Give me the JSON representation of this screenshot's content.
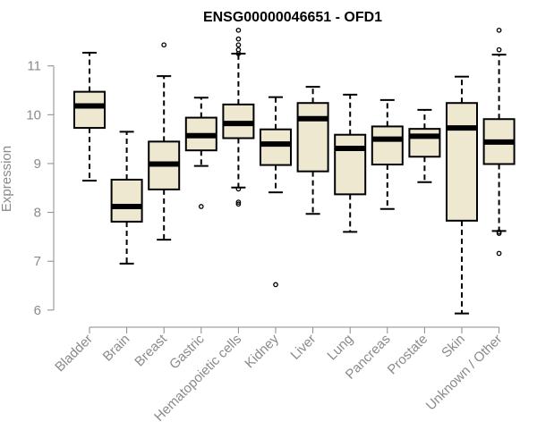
{
  "chart_data": {
    "type": "box",
    "title": "ENSG00000046651 - OFD1",
    "ylabel": "Expression",
    "xlabel": "",
    "ylim": [
      5.85,
      11.8
    ],
    "yticks": [
      6,
      7,
      8,
      9,
      10,
      11
    ],
    "categories": [
      "Bladder",
      "Brain",
      "Breast",
      "Gastric",
      "Hematopoietic cells",
      "Kidney",
      "Liver",
      "Lung",
      "Pancreas",
      "Prostate",
      "Skin",
      "Unknown / Other"
    ],
    "box_fill": "#efe8d0",
    "axis_color": "#8a8a8a",
    "boxes": [
      {
        "q1": 9.73,
        "median": 10.18,
        "q3": 10.47,
        "whislo": 8.65,
        "whishi": 11.27,
        "outliers": []
      },
      {
        "q1": 7.81,
        "median": 8.12,
        "q3": 8.67,
        "whislo": 6.95,
        "whishi": 9.65,
        "outliers": []
      },
      {
        "q1": 8.47,
        "median": 8.99,
        "q3": 9.45,
        "whislo": 7.44,
        "whishi": 10.79,
        "outliers": [
          11.43
        ]
      },
      {
        "q1": 9.27,
        "median": 9.57,
        "q3": 9.94,
        "whislo": 8.95,
        "whishi": 10.35,
        "outliers": [
          8.12
        ]
      },
      {
        "q1": 9.52,
        "median": 9.82,
        "q3": 10.21,
        "whislo": 8.51,
        "whishi": 11.25,
        "outliers": [
          11.73,
          11.55,
          11.43,
          11.33,
          11.25,
          8.48,
          8.21,
          8.17
        ]
      },
      {
        "q1": 8.97,
        "median": 9.4,
        "q3": 9.7,
        "whislo": 8.41,
        "whishi": 10.36,
        "outliers": [
          6.52
        ]
      },
      {
        "q1": 8.84,
        "median": 9.92,
        "q3": 10.24,
        "whislo": 7.97,
        "whishi": 10.57,
        "outliers": []
      },
      {
        "q1": 8.37,
        "median": 9.31,
        "q3": 9.59,
        "whislo": 7.6,
        "whishi": 10.41,
        "outliers": []
      },
      {
        "q1": 8.98,
        "median": 9.5,
        "q3": 9.76,
        "whislo": 8.07,
        "whishi": 10.3,
        "outliers": []
      },
      {
        "q1": 9.14,
        "median": 9.56,
        "q3": 9.71,
        "whislo": 8.62,
        "whishi": 10.1,
        "outliers": []
      },
      {
        "q1": 7.83,
        "median": 9.73,
        "q3": 10.24,
        "whislo": 5.93,
        "whishi": 10.78,
        "outliers": []
      },
      {
        "q1": 8.99,
        "median": 9.44,
        "q3": 9.91,
        "whislo": 7.62,
        "whishi": 11.23,
        "outliers": [
          11.73,
          11.33,
          7.6,
          7.57,
          7.16
        ]
      }
    ]
  }
}
